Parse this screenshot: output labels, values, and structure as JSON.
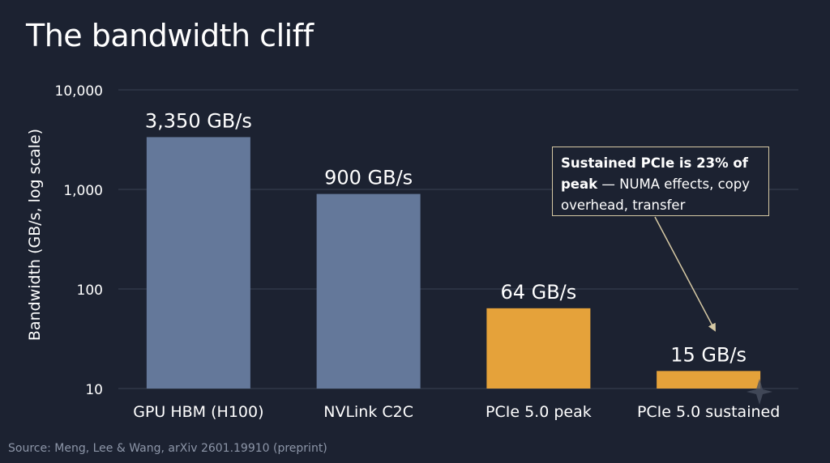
{
  "title": "The bandwidth cliff",
  "source": "Source: Meng, Lee & Wang, arXiv 2601.19910 (preprint)",
  "annotation": {
    "bold": "Sustained PCIe is 23% of peak",
    "rest": " — NUMA effects, copy overhead, transfer granularity."
  },
  "colors": {
    "background": "#1c2231",
    "bar_blue": "#64789a",
    "bar_orange": "#e5a23a",
    "grid": "#3a4152",
    "annotation_border": "#d6c9a4"
  },
  "chart_data": {
    "type": "bar",
    "title": "The bandwidth cliff",
    "xlabel": "",
    "ylabel": "Bandwidth (GB/s, log scale)",
    "yscale": "log",
    "ylim": [
      10,
      10000
    ],
    "yticks": [
      10,
      100,
      1000,
      10000
    ],
    "ytick_labels": [
      "10",
      "100",
      "1,000",
      "10,000"
    ],
    "grid": true,
    "categories": [
      "GPU HBM (H100)",
      "NVLink C2C",
      "PCIe 5.0 peak",
      "PCIe 5.0 sustained"
    ],
    "values": [
      3350,
      900,
      64,
      15
    ],
    "data_labels": [
      "3,350 GB/s",
      "900 GB/s",
      "64 GB/s",
      "15 GB/s"
    ],
    "bar_colors": [
      "#64789a",
      "#64789a",
      "#e5a23a",
      "#e5a23a"
    ]
  }
}
